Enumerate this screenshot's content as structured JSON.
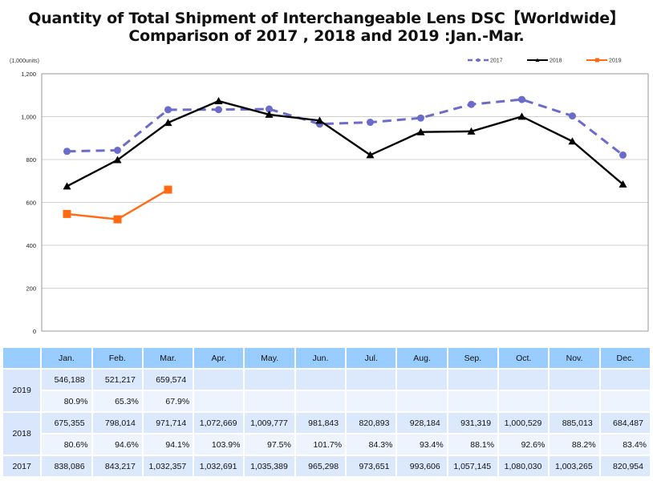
{
  "title": {
    "line1": "Quantity of Total Shipment of Interchangeable Lens DSC【Worldwide】",
    "line2": "Comparison of 2017 , 2018 and 2019 :Jan.-Mar."
  },
  "chart_data": {
    "type": "line",
    "title": "Quantity of Total Shipment of Interchangeable Lens DSC【Worldwide】 Comparison of 2017 , 2018 and 2019 :Jan.-Mar.",
    "unit_label": "(1,000units)",
    "xlabel": "",
    "ylabel": "(1,000units)",
    "ylim": [
      0,
      1200
    ],
    "yticks": [
      0,
      200,
      400,
      600,
      800,
      1000,
      1200
    ],
    "ytick_labels": [
      "0",
      "200",
      "400",
      "600",
      "800",
      "1,000",
      "1,200"
    ],
    "grid": true,
    "legend_position": "top-right",
    "categories": [
      "Jan.",
      "Feb.",
      "Mar.",
      "Apr.",
      "May.",
      "Jun.",
      "Jul.",
      "Aug.",
      "Sep.",
      "Oct.",
      "Nov.",
      "Dec."
    ],
    "series": [
      {
        "name": "2017",
        "color": "#6b6bcc",
        "style": "dashed",
        "marker": "circle",
        "values": [
          838.086,
          843.217,
          1032.357,
          1032.691,
          1035.389,
          965.298,
          973.651,
          993.606,
          1057.145,
          1080.03,
          1003.265,
          820.954
        ]
      },
      {
        "name": "2018",
        "color": "#000000",
        "style": "solid",
        "marker": "triangle",
        "values": [
          675.355,
          798.014,
          971.714,
          1072.669,
          1009.777,
          981.843,
          820.893,
          928.184,
          931.319,
          1000.529,
          885.013,
          684.487
        ]
      },
      {
        "name": "2019",
        "color": "#ff6a13",
        "style": "solid",
        "marker": "square",
        "values": [
          546.188,
          521.217,
          659.574
        ]
      }
    ]
  },
  "table": {
    "months": [
      "Jan.",
      "Feb.",
      "Mar.",
      "Apr.",
      "May.",
      "Jun.",
      "Jul.",
      "Aug.",
      "Sep.",
      "Oct.",
      "Nov.",
      "Dec."
    ],
    "rows": [
      {
        "year": "2019",
        "values": [
          "546,188",
          "521,217",
          "659,574",
          "",
          "",
          "",
          "",
          "",
          "",
          "",
          "",
          ""
        ],
        "ratios": [
          "80.9%",
          "65.3%",
          "67.9%",
          "",
          "",
          "",
          "",
          "",
          "",
          "",
          "",
          ""
        ]
      },
      {
        "year": "2018",
        "values": [
          "675,355",
          "798,014",
          "971,714",
          "1,072,669",
          "1,009,777",
          "981,843",
          "820,893",
          "928,184",
          "931,319",
          "1,000,529",
          "885,013",
          "684,487"
        ],
        "ratios": [
          "80.6%",
          "94.6%",
          "94.1%",
          "103.9%",
          "97.5%",
          "101.7%",
          "84.3%",
          "93.4%",
          "88.1%",
          "92.6%",
          "88.2%",
          "83.4%"
        ]
      },
      {
        "year": "2017",
        "values": [
          "838,086",
          "843,217",
          "1,032,357",
          "1,032,691",
          "1,035,389",
          "965,298",
          "973,651",
          "993,606",
          "1,057,145",
          "1,080,030",
          "1,003,265",
          "820,954"
        ]
      }
    ]
  }
}
